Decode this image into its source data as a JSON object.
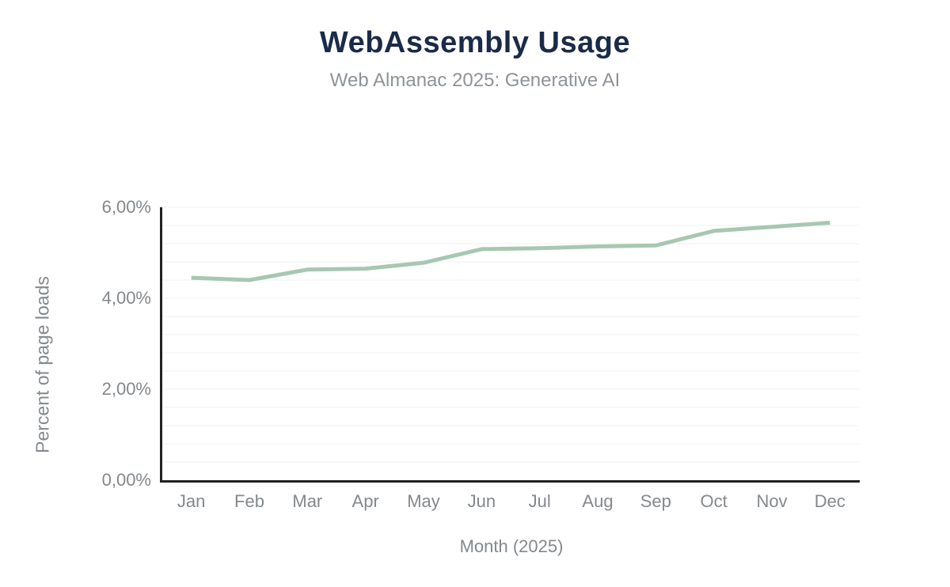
{
  "header": {
    "title": "WebAssembly Usage",
    "subtitle": "Web Almanac 2025: Generative AI"
  },
  "chart_data": {
    "type": "line",
    "title": "WebAssembly Usage",
    "subtitle": "Web Almanac 2025: Generative AI",
    "categories": [
      "Jan",
      "Feb",
      "Mar",
      "Apr",
      "May",
      "Jun",
      "Jul",
      "Aug",
      "Sep",
      "Oct",
      "Nov",
      "Dec"
    ],
    "values": [
      4.45,
      4.4,
      4.63,
      4.65,
      4.78,
      5.08,
      5.1,
      5.14,
      5.16,
      5.48,
      5.57,
      5.66
    ],
    "xlabel": "Month (2025)",
    "ylabel": "Percent of page loads",
    "ylim": [
      0,
      6
    ],
    "y_major_ticks": [
      0,
      2,
      4,
      6
    ],
    "y_tick_labels": [
      "0,00%",
      "2,00%",
      "4,00%",
      "6,00%"
    ],
    "y_minor_gridline_step": 0.4,
    "grid": true,
    "legend": "none",
    "colors": {
      "line": "#a8c7b2",
      "title": "#1a2b49",
      "subtitle": "#8f9397",
      "axis_labels": "#84888c",
      "axis_line": "#212121",
      "gridline": "#f2f2f2",
      "background": "#ffffff"
    }
  }
}
